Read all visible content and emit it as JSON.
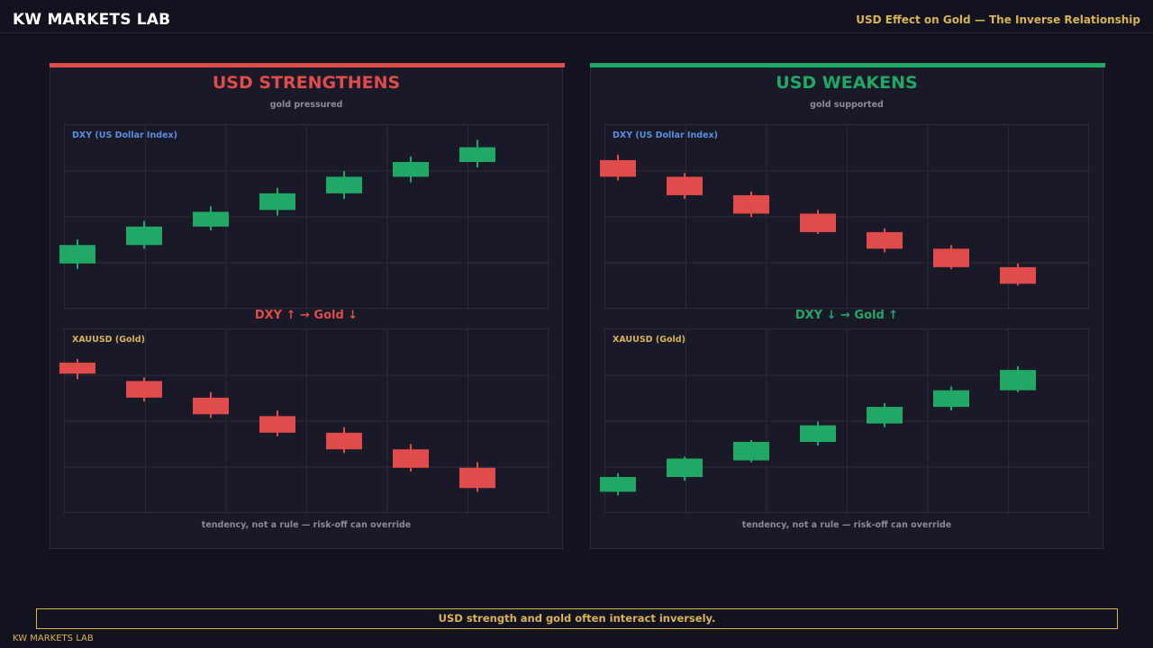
{
  "header": {
    "brand": "KW MARKETS LAB",
    "subtitle": "USD Effect on Gold — The Inverse Relationship"
  },
  "colors": {
    "up": "#22a866",
    "down": "#e04b4b",
    "dxy_label": "#5b8fe0",
    "gold_label": "#d9b454",
    "gold": "#d9b454",
    "grid": "#2a2a3a"
  },
  "panels": [
    {
      "title": "USD STRENGTHENS",
      "subtitle": "gold pressured",
      "accent": "#e04b4b",
      "relation": "DXY ↑   →   Gold ↓",
      "note": "tendency, not a rule — risk-off can override",
      "dxy_label": "DXY  (US Dollar Index)",
      "gold_label": "XAUUSD  (Gold)"
    },
    {
      "title": "USD WEAKENS",
      "subtitle": "gold supported",
      "accent": "#22a866",
      "relation": "DXY ↓   →   Gold ↑",
      "note": "tendency, not a rule — risk-off can override",
      "dxy_label": "DXY  (US Dollar Index)",
      "gold_label": "XAUUSD  (Gold)"
    }
  ],
  "chart_data": [
    {
      "type": "candlestick",
      "title": "DXY  (US Dollar Index)",
      "ylim": [
        0,
        100
      ],
      "candles": [
        {
          "o": 25,
          "c": 35,
          "h": 38,
          "l": 22
        },
        {
          "o": 35,
          "c": 45,
          "h": 48,
          "l": 33
        },
        {
          "o": 45,
          "c": 53,
          "h": 56,
          "l": 43
        },
        {
          "o": 54,
          "c": 63,
          "h": 66,
          "l": 51
        },
        {
          "o": 63,
          "c": 72,
          "h": 75,
          "l": 60
        },
        {
          "o": 72,
          "c": 80,
          "h": 83,
          "l": 69
        },
        {
          "o": 80,
          "c": 88,
          "h": 92,
          "l": 77
        }
      ]
    },
    {
      "type": "candlestick",
      "title": "XAUUSD  (Gold)",
      "ylim": [
        0,
        100
      ],
      "candles": [
        {
          "o": 82,
          "c": 76,
          "h": 84,
          "l": 73
        },
        {
          "o": 72,
          "c": 63,
          "h": 74,
          "l": 61
        },
        {
          "o": 63,
          "c": 54,
          "h": 66,
          "l": 52
        },
        {
          "o": 53,
          "c": 44,
          "h": 56,
          "l": 42
        },
        {
          "o": 44,
          "c": 35,
          "h": 47,
          "l": 33
        },
        {
          "o": 35,
          "c": 25,
          "h": 38,
          "l": 23
        },
        {
          "o": 25,
          "c": 14,
          "h": 28,
          "l": 12
        }
      ]
    },
    {
      "type": "candlestick",
      "title": "DXY  (US Dollar Index)",
      "ylim": [
        0,
        100
      ],
      "candles": [
        {
          "o": 81,
          "c": 72,
          "h": 84,
          "l": 70
        },
        {
          "o": 72,
          "c": 62,
          "h": 74,
          "l": 60
        },
        {
          "o": 62,
          "c": 52,
          "h": 64,
          "l": 50
        },
        {
          "o": 52,
          "c": 42,
          "h": 54,
          "l": 41
        },
        {
          "o": 42,
          "c": 33,
          "h": 44,
          "l": 31
        },
        {
          "o": 33,
          "c": 23,
          "h": 35,
          "l": 22
        },
        {
          "o": 23,
          "c": 14,
          "h": 25,
          "l": 13
        }
      ]
    },
    {
      "type": "candlestick",
      "title": "XAUUSD  (Gold)",
      "ylim": [
        0,
        100
      ],
      "candles": [
        {
          "o": 12,
          "c": 20,
          "h": 22,
          "l": 10
        },
        {
          "o": 20,
          "c": 30,
          "h": 31,
          "l": 18
        },
        {
          "o": 29,
          "c": 39,
          "h": 40,
          "l": 28
        },
        {
          "o": 39,
          "c": 48,
          "h": 50,
          "l": 37
        },
        {
          "o": 49,
          "c": 58,
          "h": 60,
          "l": 47
        },
        {
          "o": 58,
          "c": 67,
          "h": 69,
          "l": 56
        },
        {
          "o": 67,
          "c": 78,
          "h": 80,
          "l": 66
        }
      ]
    }
  ],
  "banner": "USD strength and gold often interact inversely.",
  "footer": "KW MARKETS LAB"
}
